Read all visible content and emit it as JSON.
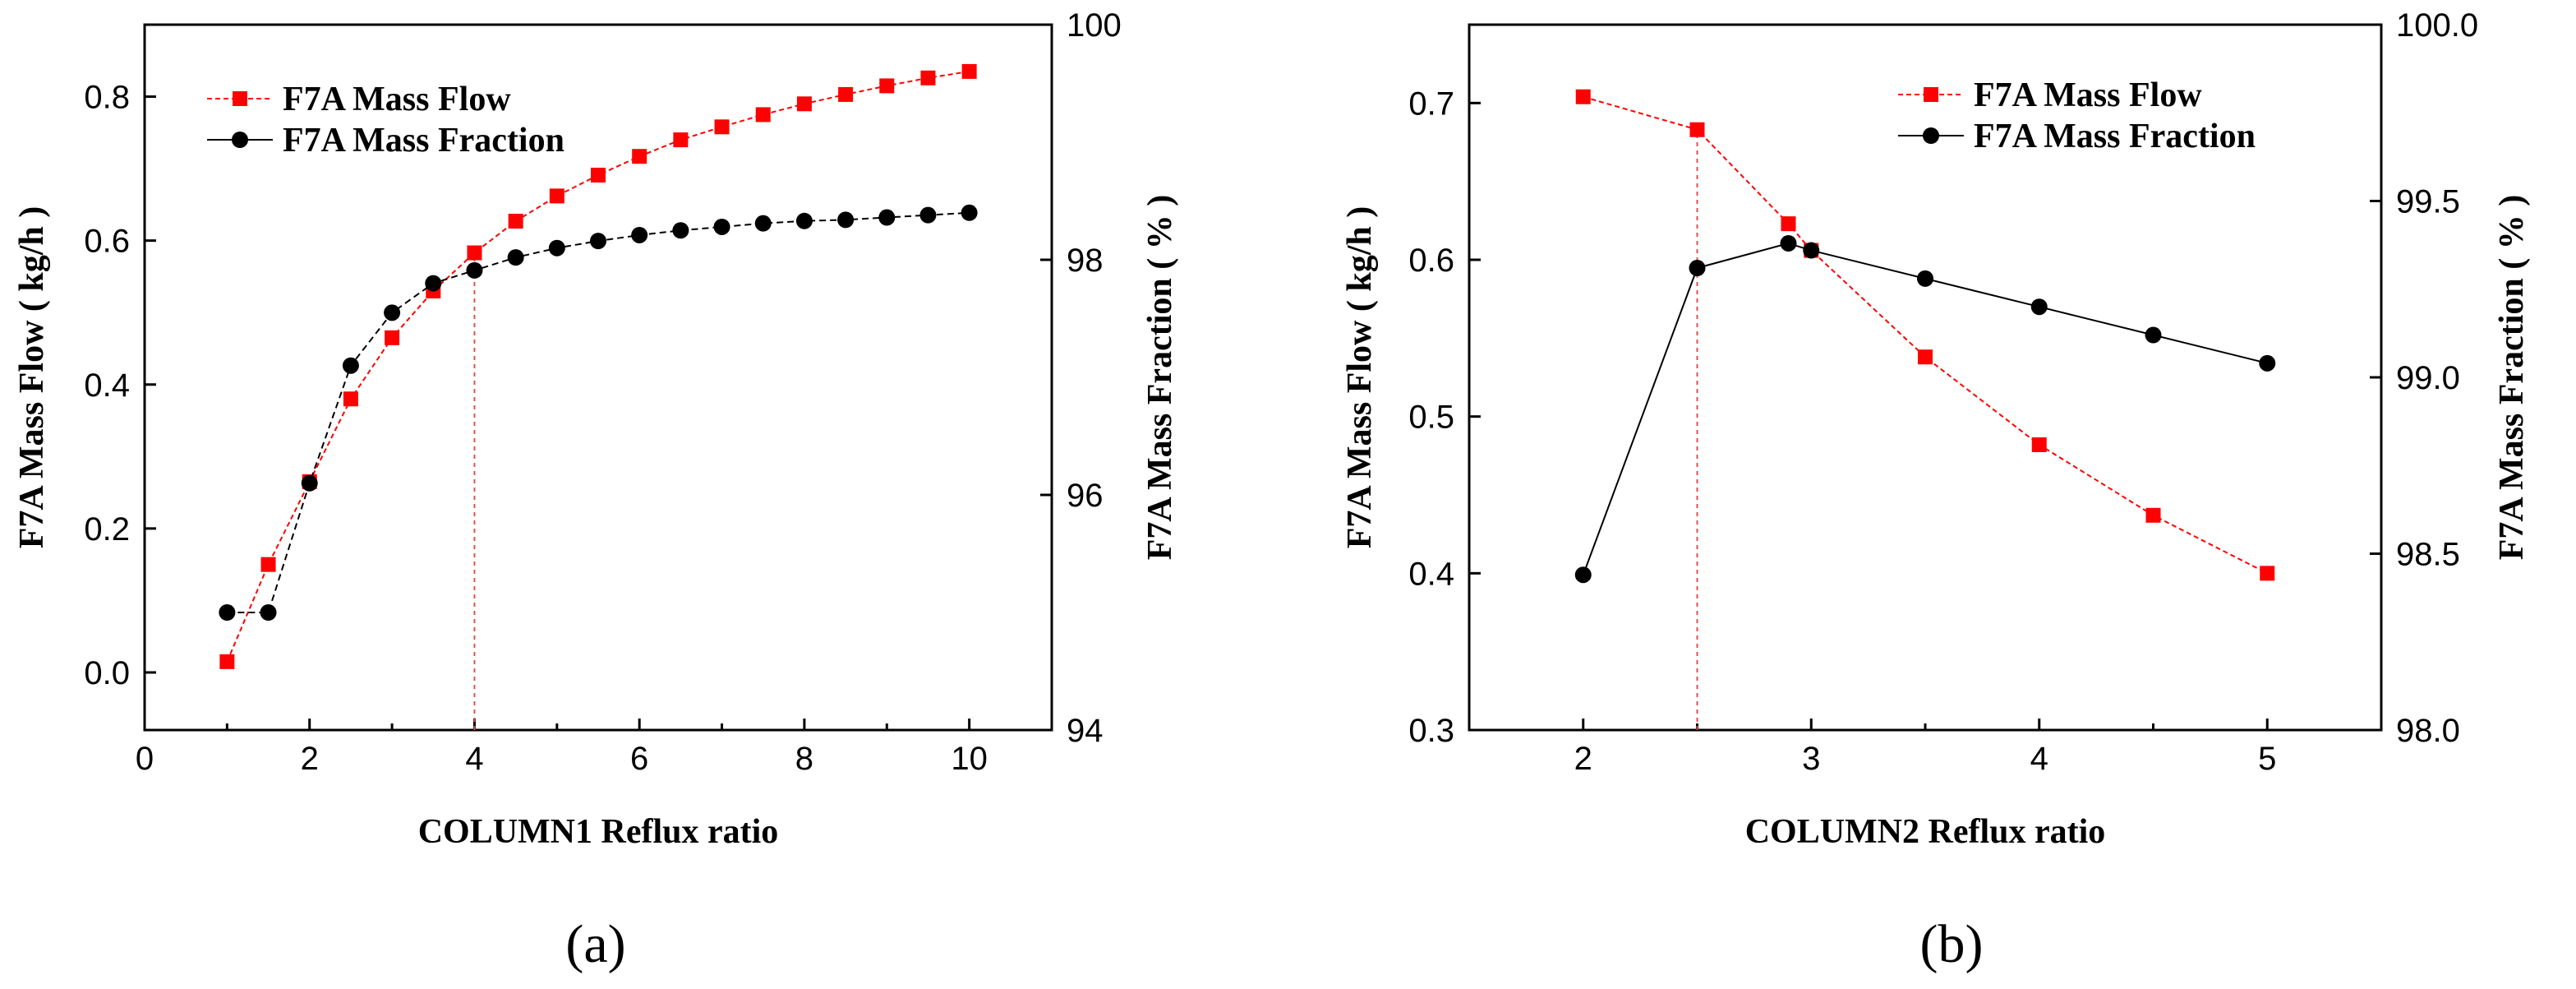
{
  "figure": {
    "panel_labels": [
      "(a)",
      "(b)"
    ]
  },
  "chart_data": [
    {
      "type": "line",
      "panel": "a",
      "title": "",
      "xlabel": "COLUMN1 Reflux ratio",
      "ylabel_left": "F7A Mass Flow ( kg/h )",
      "ylabel_right": "F7A Mass Fraction ( % )",
      "xlim": [
        0,
        11
      ],
      "ylim_left": [
        -0.08,
        0.9
      ],
      "ylim_right": [
        94,
        100
      ],
      "xticks": [
        0,
        2,
        4,
        6,
        8,
        10
      ],
      "yticks_left": [
        0.0,
        0.2,
        0.4,
        0.6,
        0.8
      ],
      "yticks_left_labels": [
        "0.0",
        "0.2",
        "0.4",
        "0.6",
        "0.8"
      ],
      "yticks_right": [
        94,
        96,
        98,
        100
      ],
      "yticks_right_labels": [
        "94",
        "96",
        "98",
        "100"
      ],
      "vline_x": 4,
      "legend_position": "top-left",
      "series": [
        {
          "name": "F7A Mass Flow",
          "axis": "left",
          "marker": "square",
          "color": "#ff0000",
          "x": [
            1,
            1.5,
            2,
            2.5,
            3,
            3.5,
            4,
            4.5,
            5,
            5.5,
            6,
            6.5,
            7,
            7.5,
            8,
            8.5,
            9,
            9.5,
            10
          ],
          "values": [
            0.015,
            0.15,
            0.265,
            0.38,
            0.465,
            0.53,
            0.583,
            0.627,
            0.662,
            0.691,
            0.717,
            0.74,
            0.758,
            0.775,
            0.79,
            0.803,
            0.815,
            0.826,
            0.835
          ]
        },
        {
          "name": "F7A Mass Fraction",
          "axis": "right",
          "marker": "circle",
          "color": "#000000",
          "x": [
            1,
            1.5,
            2,
            2.5,
            3,
            3.5,
            4,
            4.5,
            5,
            5.5,
            6,
            6.5,
            7,
            7.5,
            8,
            8.5,
            9,
            9.5,
            10
          ],
          "values": [
            95.0,
            95.0,
            96.1,
            97.1,
            97.55,
            97.8,
            97.91,
            98.02,
            98.1,
            98.16,
            98.21,
            98.25,
            98.28,
            98.31,
            98.33,
            98.34,
            98.36,
            98.38,
            98.4
          ]
        }
      ]
    },
    {
      "type": "line",
      "panel": "b",
      "title": "",
      "xlabel": "COLUMN2 Reflux ratio",
      "ylabel_left": "F7A Mass Flow ( kg/h )",
      "ylabel_right": "F7A Mass Fraction ( % )",
      "xlim": [
        1.5,
        5.5
      ],
      "ylim_left": [
        0.3,
        0.75
      ],
      "ylim_right": [
        98.0,
        100.0
      ],
      "xticks": [
        2,
        3,
        4,
        5
      ],
      "yticks_left": [
        0.3,
        0.4,
        0.5,
        0.6,
        0.7
      ],
      "yticks_left_labels": [
        "0.3",
        "0.4",
        "0.5",
        "0.6",
        "0.7"
      ],
      "yticks_right": [
        98.0,
        98.5,
        99.0,
        99.5,
        100.0
      ],
      "yticks_right_labels": [
        "98.0",
        "98.5",
        "99.0",
        "99.5",
        "100.0"
      ],
      "vline_x": 2.5,
      "legend_position": "top-right",
      "series": [
        {
          "name": "F7A Mass Flow",
          "axis": "left",
          "marker": "square",
          "color": "#ff0000",
          "x": [
            2,
            2.5,
            2.9,
            3,
            3.5,
            4,
            4.5,
            5
          ],
          "values": [
            0.704,
            0.683,
            0.623,
            0.606,
            0.538,
            0.482,
            0.437,
            0.4
          ]
        },
        {
          "name": "F7A Mass Fraction",
          "axis": "right",
          "marker": "circle",
          "color": "#000000",
          "x": [
            2,
            2.5,
            2.9,
            3,
            3.5,
            4,
            4.5,
            5
          ],
          "values": [
            98.44,
            99.31,
            99.38,
            99.36,
            99.28,
            99.2,
            99.12,
            99.04
          ]
        }
      ]
    }
  ]
}
